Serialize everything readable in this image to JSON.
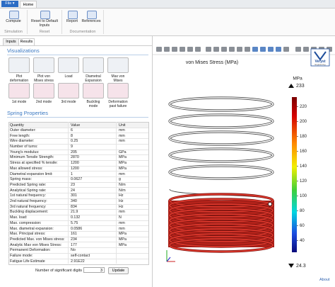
{
  "ribbon": {
    "file_menu": "File ▾",
    "tab": "Home",
    "groups": [
      {
        "label": "Simulation",
        "buttons": [
          "Compute"
        ]
      },
      {
        "label": "Reset",
        "buttons": [
          "Reset to Default Inputs"
        ]
      },
      {
        "label": "Documentation",
        "buttons": [
          "Report",
          "References"
        ]
      }
    ]
  },
  "left_panel": {
    "tabs": [
      "Inputs",
      "Results"
    ],
    "visualizations": {
      "title": "Visualizations",
      "buttons": [
        "Plot deformation",
        "Plot von Mises stress",
        "Load",
        "Diametral Expansion",
        "Max von Mises",
        "1st mode",
        "2nd mode",
        "3rd mode",
        "Buckling mode",
        "Deformation past failure"
      ]
    },
    "properties": {
      "title": "Spring Properties",
      "columns": [
        "Quantity",
        "Value",
        "Unit"
      ],
      "rows": [
        [
          "Outer diameter:",
          6,
          "mm"
        ],
        [
          "Free length:",
          8,
          "mm"
        ],
        [
          "Wire diameter:",
          0.25,
          "mm"
        ],
        [
          "Number of turns:",
          9
        ],
        [
          "Young's modulus:",
          205,
          "GPa"
        ],
        [
          "Minimum Tensile Strength:",
          2870,
          "MPa"
        ],
        [
          "Stress at specified % tensile:",
          1200,
          "MPa"
        ],
        [
          "Max allowed stress:",
          1200,
          "MPa"
        ],
        [
          "Diametral expansion limit:",
          1,
          "mm"
        ],
        [
          "Spring mass:",
          0.0627,
          "g"
        ],
        [
          "Predicted Spring rate:",
          23,
          "N/m"
        ],
        [
          "Analytical Spring rate:",
          24,
          "N/m"
        ],
        [
          "1st natural frequency:",
          301,
          "Hz"
        ],
        [
          "2nd natural frequency:",
          340,
          "Hz"
        ],
        [
          "3rd natural frequency:",
          834,
          "Hz"
        ],
        [
          "Buckling displacement:",
          21.9,
          "mm"
        ],
        [
          "Max. load:",
          0.132,
          "N"
        ],
        [
          "Max. compression:",
          5.75,
          "mm"
        ],
        [
          "Max. diametral expansion:",
          0.0586,
          "mm"
        ],
        [
          "Max. Principal stress:",
          161,
          "MPa"
        ],
        [
          "Predicted Max. von Mises stress:",
          234,
          "MPa"
        ],
        [
          "Analytic Max von Mises Stress:",
          177,
          "MPa"
        ],
        [
          "Permanent Deformation:",
          "No"
        ],
        [
          "Failure mode:",
          "self-contact"
        ],
        [
          "Fatigue Life Estimate",
          "2.91E22"
        ]
      ]
    },
    "digits": {
      "label": "Number of significant digits",
      "value": 3,
      "button": "Update"
    }
  },
  "graphics": {
    "title": "von Mises Stress (MPa)",
    "colorbar": {
      "unit": "MPa",
      "max": 233,
      "min": 24.3,
      "ticks": [
        220,
        200,
        180,
        160,
        140,
        120,
        100,
        80,
        60,
        40
      ]
    },
    "logo": {
      "name": "Veryst",
      "sub": "Engineering"
    }
  },
  "about": "About"
}
